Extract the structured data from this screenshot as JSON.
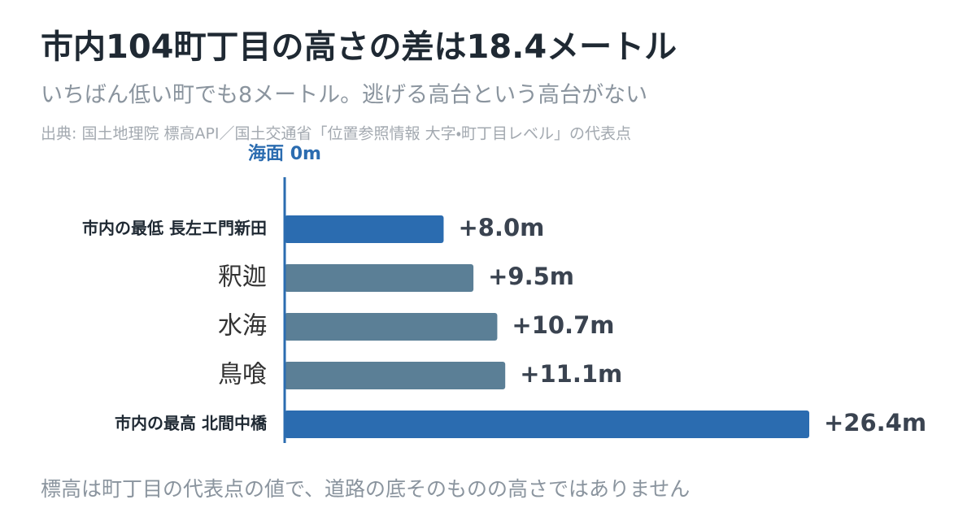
{
  "chart_data": {
    "type": "hbar",
    "title": "市内104町丁目の高さの差は18.4メートル",
    "subtitle": "いちばん低い町でも8メートル。逃げる高台という高台がない",
    "source": "出典: 国土地理院 標高API／国土交通省「位置参照情報 大字・町丁目レベル」の代表点",
    "baseline_label": "海面 0m",
    "footnote": "標高は町丁目の代表点の値で、道路の底そのものの高さではありません",
    "categories": [
      "市内の最低 長左エ門新田",
      "釈迦",
      "水海",
      "鳥喰",
      "市内の最高 北間中橋"
    ],
    "values": [
      8.0,
      9.5,
      10.7,
      11.1,
      26.4
    ],
    "value_labels": [
      "+8.0m",
      "+9.5m",
      "+10.7m",
      "+11.1m",
      "+26.4m"
    ],
    "colors": [
      "#2b6cb0",
      "#5b7f96",
      "#5b7f96",
      "#5b7f96",
      "#2b6cb0"
    ],
    "emphasis": [
      true,
      false,
      false,
      false,
      true
    ],
    "baseline_color": "#2b6cb0"
  }
}
